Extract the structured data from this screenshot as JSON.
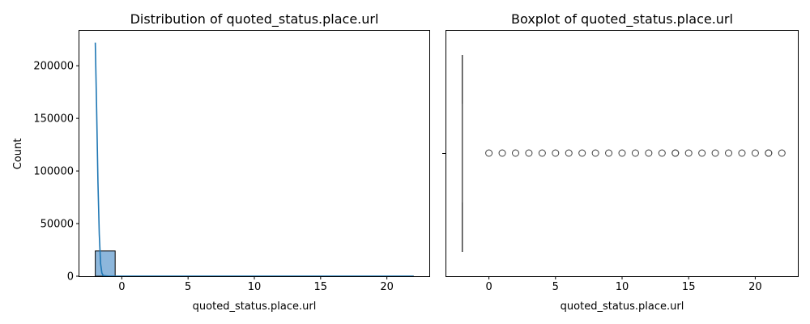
{
  "chart_data": [
    {
      "type": "histogram",
      "title": "Distribution of quoted_status.place.url",
      "xlabel": "quoted_status.place.url",
      "ylabel": "Count",
      "xlim": [
        -3.2,
        23.2
      ],
      "ylim": [
        0,
        234000
      ],
      "xticks": [
        0,
        5,
        10,
        15,
        20
      ],
      "yticks": [
        0,
        50000,
        100000,
        150000,
        200000
      ],
      "grid": false,
      "bins": [
        {
          "x0": -2.0,
          "x1": -0.5,
          "count": 24000
        },
        {
          "x0": -0.5,
          "x1": 1.0,
          "count": 2
        },
        {
          "x0": 1.0,
          "x1": 2.5,
          "count": 2
        },
        {
          "x0": 2.5,
          "x1": 4.0,
          "count": 2
        },
        {
          "x0": 4.0,
          "x1": 5.5,
          "count": 2
        },
        {
          "x0": 5.5,
          "x1": 7.0,
          "count": 2
        },
        {
          "x0": 7.0,
          "x1": 8.5,
          "count": 2
        },
        {
          "x0": 8.5,
          "x1": 10.0,
          "count": 2
        },
        {
          "x0": 10.0,
          "x1": 11.5,
          "count": 2
        },
        {
          "x0": 11.5,
          "x1": 13.0,
          "count": 2
        },
        {
          "x0": 13.0,
          "x1": 14.5,
          "count": 3
        },
        {
          "x0": 14.5,
          "x1": 16.0,
          "count": 2
        },
        {
          "x0": 16.0,
          "x1": 17.5,
          "count": 2
        },
        {
          "x0": 17.5,
          "x1": 19.0,
          "count": 2
        },
        {
          "x0": 19.0,
          "x1": 20.5,
          "count": 2
        },
        {
          "x0": 20.5,
          "x1": 22.0,
          "count": 3
        }
      ],
      "kde": {
        "x": [
          -2.0,
          -1.9,
          -1.8,
          -1.7,
          -1.6,
          -1.5,
          -1.4,
          -1.0,
          0,
          5,
          10,
          15,
          20,
          22
        ],
        "y": [
          222000,
          160000,
          90000,
          40000,
          12000,
          3000,
          600,
          100,
          50,
          50,
          50,
          50,
          50,
          50
        ]
      },
      "colors": {
        "bar_fill": "#8db7dc",
        "bar_edge": "#000000",
        "kde_line": "#1f77b4"
      }
    },
    {
      "type": "boxplot",
      "title": "Boxplot of quoted_status.place.url",
      "xlabel": "quoted_status.place.url",
      "ylabel": "",
      "xlim": [
        -3.2,
        23.2
      ],
      "xticks": [
        0,
        5,
        10,
        15,
        20
      ],
      "grid": false,
      "box": {
        "min": -2,
        "q1": -2,
        "median": -2,
        "q3": -2,
        "max": -2
      },
      "outliers": [
        0,
        1,
        2,
        3,
        4,
        5,
        6,
        7,
        8,
        9,
        10,
        11,
        12,
        13,
        14,
        14,
        15,
        16,
        17,
        18,
        19,
        20,
        21,
        21,
        22
      ],
      "colors": {
        "box_fill": "#1f77b4",
        "line": "#3f3f3f",
        "outlier_edge": "#3f3f3f"
      }
    }
  ]
}
